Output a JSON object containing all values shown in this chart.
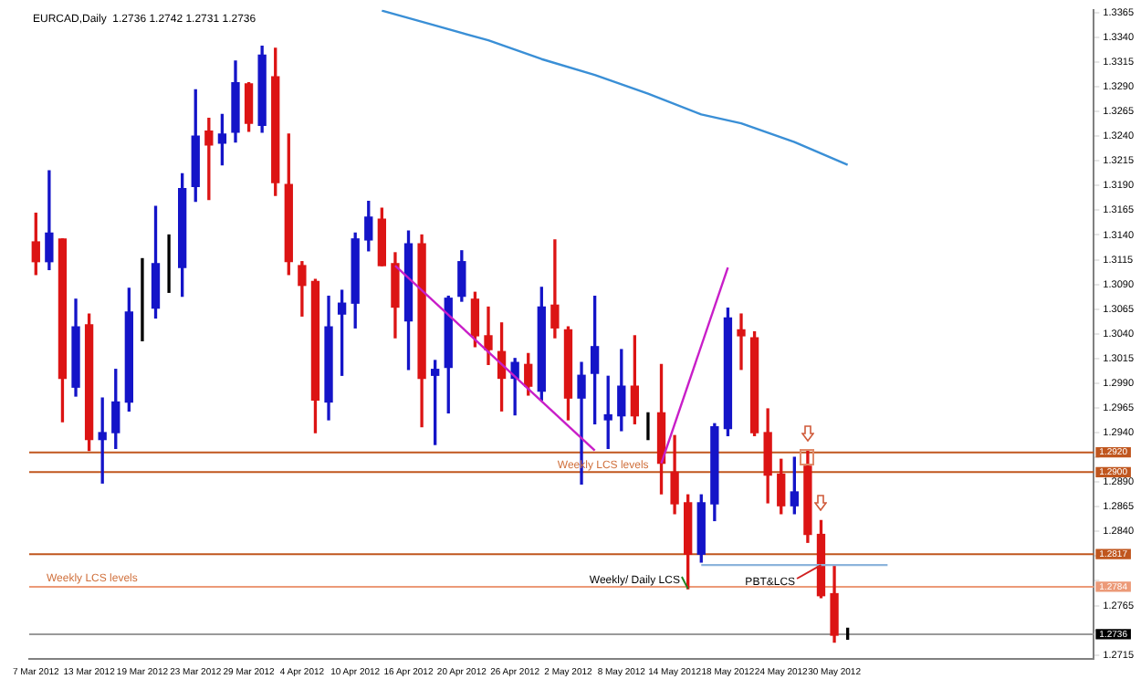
{
  "chart_data": {
    "type": "candlestick",
    "title": "EURCAD,Daily  1.2736 1.2742 1.2731 1.2736",
    "categories": [
      "7 Mar 2012",
      null,
      null,
      null,
      "13 Mar 2012",
      null,
      null,
      null,
      "19 Mar 2012",
      null,
      null,
      null,
      "23 Mar 2012",
      null,
      null,
      null,
      "29 Mar 2012",
      null,
      null,
      null,
      "4 Apr 2012",
      null,
      null,
      null,
      "10 Apr 2012",
      null,
      null,
      null,
      "16 Apr 2012",
      null,
      null,
      null,
      "20 Apr 2012",
      null,
      null,
      null,
      "26 Apr 2012",
      null,
      null,
      null,
      "2 May 2012",
      null,
      null,
      null,
      "8 May 2012",
      null,
      null,
      null,
      "14 May 2012",
      null,
      null,
      null,
      "18 May 2012",
      null,
      null,
      null,
      "24 May 2012",
      null,
      null,
      null,
      "30 May 2012",
      null,
      null,
      null,
      null,
      null,
      null,
      null,
      null,
      null,
      null,
      null,
      null,
      null,
      null,
      null,
      null,
      null,
      null,
      null
    ],
    "ohlc": [
      [
        1.3133,
        1.3162,
        1.31,
        1.3113
      ],
      [
        1.3113,
        1.3205,
        1.3105,
        1.3142
      ],
      [
        1.3136,
        1.3136,
        1.2951,
        1.2995
      ],
      [
        1.2986,
        1.3075,
        1.2977,
        1.3047
      ],
      [
        1.3049,
        1.306,
        1.2922,
        1.2933
      ],
      [
        1.2933,
        1.2975,
        1.2889,
        1.294
      ],
      [
        1.294,
        1.3004,
        1.2924,
        1.2971
      ],
      [
        1.2971,
        1.3086,
        1.2962,
        1.3062
      ],
      [
        1.3063,
        1.3116,
        1.3033,
        1.3063
      ],
      [
        1.3066,
        1.3169,
        1.3056,
        1.3111
      ],
      [
        1.311,
        1.314,
        1.3082,
        1.311
      ],
      [
        1.3107,
        1.3202,
        1.3078,
        1.3187
      ],
      [
        1.3189,
        1.3287,
        1.3174,
        1.324
      ],
      [
        1.3245,
        1.3258,
        1.3176,
        1.3231
      ],
      [
        1.3233,
        1.3262,
        1.3211,
        1.3242
      ],
      [
        1.3244,
        1.3316,
        1.3234,
        1.3294
      ],
      [
        1.3293,
        1.3294,
        1.3245,
        1.3253
      ],
      [
        1.3251,
        1.3331,
        1.3244,
        1.3322
      ],
      [
        1.33,
        1.3329,
        1.318,
        1.3193
      ],
      [
        1.3191,
        1.3242,
        1.31,
        1.3113
      ],
      [
        1.3109,
        1.3113,
        1.3058,
        1.3089
      ],
      [
        1.3093,
        1.3095,
        1.294,
        1.2973
      ],
      [
        1.2971,
        1.3078,
        1.2953,
        1.3047
      ],
      [
        1.306,
        1.3084,
        1.2998,
        1.3071
      ],
      [
        1.3071,
        1.3142,
        1.3046,
        1.3136
      ],
      [
        1.3135,
        1.3174,
        1.3124,
        1.3158
      ],
      [
        1.3156,
        1.3167,
        1.3109,
        1.3109
      ],
      [
        1.3111,
        1.3122,
        1.3036,
        1.3067
      ],
      [
        1.3053,
        1.3144,
        1.3004,
        1.3131
      ],
      [
        1.3131,
        1.314,
        1.2946,
        1.2995
      ],
      [
        1.2998,
        1.3013,
        1.2928,
        1.3004
      ],
      [
        1.3006,
        1.3078,
        1.296,
        1.3076
      ],
      [
        1.3078,
        1.3124,
        1.3073,
        1.3113
      ],
      [
        1.3075,
        1.3082,
        1.3027,
        1.3038
      ],
      [
        1.3038,
        1.3067,
        1.3009,
        1.3024
      ],
      [
        1.3022,
        1.3051,
        1.2962,
        1.2995
      ],
      [
        1.2995,
        1.3015,
        1.2958,
        1.3011
      ],
      [
        1.3009,
        1.302,
        1.2978,
        1.2987
      ],
      [
        1.2982,
        1.3087,
        1.2973,
        1.3067
      ],
      [
        1.3069,
        1.3135,
        1.3036,
        1.3046
      ],
      [
        1.3044,
        1.3047,
        1.2953,
        1.2975
      ],
      [
        1.2975,
        1.3011,
        1.2888,
        1.2998
      ],
      [
        1.3,
        1.3078,
        1.2949,
        1.3027
      ],
      [
        1.2953,
        1.2997,
        1.2924,
        1.2958
      ],
      [
        1.2957,
        1.3024,
        1.2942,
        1.2987
      ],
      [
        1.2987,
        1.3038,
        1.2949,
        1.2957
      ],
      [
        1.296,
        1.296,
        1.2933,
        1.296
      ],
      [
        1.296,
        1.3009,
        1.2878,
        1.2909
      ],
      [
        1.29,
        1.2937,
        1.2858,
        1.2868
      ],
      [
        1.2869,
        1.2877,
        1.2782,
        1.2817
      ],
      [
        1.2817,
        1.2877,
        1.2809,
        1.2869
      ],
      [
        1.2868,
        1.2949,
        1.2851,
        1.2946
      ],
      [
        1.2944,
        1.3066,
        1.2937,
        1.3056
      ],
      [
        1.3044,
        1.306,
        1.3004,
        1.3038
      ],
      [
        1.3036,
        1.3042,
        1.2937,
        1.294
      ],
      [
        1.294,
        1.2964,
        1.2869,
        1.2897
      ],
      [
        1.2898,
        1.2913,
        1.2858,
        1.2866
      ],
      [
        1.2866,
        1.2915,
        1.2858,
        1.288
      ],
      [
        1.2906,
        1.2922,
        1.2829,
        1.2837
      ],
      [
        1.2837,
        1.2851,
        1.2773,
        1.2775
      ],
      [
        1.2777,
        1.2806,
        1.2728,
        1.2735
      ],
      [
        1.2736,
        1.2742,
        1.2731,
        1.2736
      ],
      null,
      null,
      null,
      null,
      null,
      null,
      null,
      null,
      null,
      null,
      null,
      null,
      null,
      null,
      null,
      null,
      null,
      null
    ],
    "colors": [
      "#dc1414",
      "#1414c8",
      "#dc1414",
      "#1414c8",
      "#dc1414",
      "#1414c8",
      "#1414c8",
      "#1414c8",
      "#000000",
      "#1414c8",
      "#000000",
      "#1414c8",
      "#1414c8",
      "#dc1414",
      "#1414c8",
      "#1414c8",
      "#dc1414",
      "#1414c8",
      "#dc1414",
      "#dc1414",
      "#dc1414",
      "#dc1414",
      "#1414c8",
      "#1414c8",
      "#1414c8",
      "#1414c8",
      "#dc1414",
      "#dc1414",
      "#1414c8",
      "#dc1414",
      "#1414c8",
      "#1414c8",
      "#1414c8",
      "#dc1414",
      "#dc1414",
      "#dc1414",
      "#1414c8",
      "#dc1414",
      "#1414c8",
      "#dc1414",
      "#dc1414",
      "#1414c8",
      "#1414c8",
      "#1414c8",
      "#1414c8",
      "#dc1414",
      "#000000",
      "#dc1414",
      "#dc1414",
      "#dc1414",
      "#1414c8",
      "#1414c8",
      "#1414c8",
      "#dc1414",
      "#dc1414",
      "#dc1414",
      "#dc1414",
      "#1414c8",
      "#dc1414",
      "#dc1414",
      "#dc1414",
      "#000000",
      null,
      null,
      null,
      null,
      null,
      null,
      null,
      null,
      null,
      null,
      null,
      null,
      null,
      null,
      null,
      null,
      null,
      null
    ],
    "series": [
      {
        "type": "line",
        "color": "#3a8fd6",
        "values": [
          null,
          null,
          null,
          null,
          null,
          null,
          null,
          null,
          null,
          null,
          null,
          null,
          null,
          null,
          null,
          null,
          null,
          null,
          null,
          null,
          null,
          null,
          null,
          null,
          null,
          null,
          1.3367,
          null,
          null,
          null,
          1.3352,
          null,
          null,
          null,
          1.3337,
          null,
          null,
          null,
          1.3318,
          null,
          null,
          null,
          1.3302,
          null,
          null,
          null,
          1.3283,
          null,
          null,
          null,
          1.3262,
          null,
          null,
          1.3253,
          null,
          null,
          null,
          1.3234,
          null,
          null,
          null,
          1.3211,
          null,
          null,
          null,
          null,
          null,
          null,
          null,
          null,
          null,
          null,
          null,
          null,
          null,
          null,
          null,
          null,
          null,
          null
        ]
      },
      {
        "type": "line",
        "color": "#c81ec8",
        "values": [
          null,
          null,
          null,
          null,
          null,
          null,
          null,
          null,
          null,
          null,
          null,
          null,
          null,
          null,
          null,
          null,
          null,
          null,
          null,
          null,
          null,
          null,
          null,
          null,
          null,
          null,
          null,
          1.3109,
          null,
          null,
          null,
          null,
          null,
          null,
          null,
          null,
          null,
          null,
          null,
          null,
          null,
          null,
          1.2922,
          null,
          null,
          null,
          null,
          null,
          null,
          null,
          null,
          null,
          null,
          null,
          null,
          null,
          null,
          null,
          null,
          null,
          null,
          null,
          null,
          null,
          null,
          null,
          null,
          null,
          null,
          null,
          null,
          null,
          null,
          null,
          null,
          null,
          null,
          null,
          null,
          null
        ]
      },
      {
        "type": "line",
        "color": "#c81ec8",
        "values": [
          null,
          null,
          null,
          null,
          null,
          null,
          null,
          null,
          null,
          null,
          null,
          null,
          null,
          null,
          null,
          null,
          null,
          null,
          null,
          null,
          null,
          null,
          null,
          null,
          null,
          null,
          null,
          null,
          null,
          null,
          null,
          null,
          null,
          null,
          null,
          null,
          null,
          null,
          null,
          null,
          null,
          null,
          null,
          null,
          null,
          null,
          null,
          1.2909,
          null,
          null,
          null,
          null,
          1.3107,
          null,
          null,
          null,
          null,
          null,
          null,
          null,
          null,
          null,
          null,
          null,
          null,
          null,
          null,
          null,
          null,
          null,
          null,
          null,
          null,
          null,
          null,
          null,
          null,
          null,
          null,
          null
        ]
      },
      {
        "type": "line",
        "color": "#8cb4dc",
        "values": [
          null,
          null,
          null,
          null,
          null,
          null,
          null,
          null,
          null,
          null,
          null,
          null,
          null,
          null,
          null,
          null,
          null,
          null,
          null,
          null,
          null,
          null,
          null,
          null,
          null,
          null,
          null,
          null,
          null,
          null,
          null,
          null,
          null,
          null,
          null,
          null,
          null,
          null,
          null,
          null,
          null,
          null,
          null,
          null,
          null,
          null,
          null,
          null,
          null,
          null,
          1.2806,
          null,
          null,
          null,
          null,
          null,
          null,
          null,
          null,
          null,
          null,
          null,
          null,
          null,
          1.2806,
          null,
          null,
          null,
          null,
          null,
          null,
          null,
          null,
          null,
          null,
          null,
          null,
          null,
          null,
          null
        ]
      }
    ],
    "ylim": [
      1.2711,
      1.3368
    ],
    "yticks": [
      1.2715,
      {
        "value": 1.274,
        "label": null
      },
      1.2765,
      {
        "value": 1.279,
        "label": null
      },
      {
        "value": 1.2815,
        "label": null
      },
      {
        "value": 1.284,
        "label": "1.2840"
      },
      1.2865,
      {
        "value": 1.289,
        "label": "1.2890"
      },
      {
        "value": 1.2915,
        "label": null
      },
      {
        "value": 1.294,
        "label": "1.2940"
      },
      1.2965,
      {
        "value": 1.299,
        "label": "1.2990"
      },
      1.3015,
      {
        "value": 1.304,
        "label": "1.3040"
      },
      1.3065,
      {
        "value": 1.309,
        "label": "1.3090"
      },
      1.3115,
      {
        "value": 1.314,
        "label": "1.3140"
      },
      1.3165,
      {
        "value": 1.319,
        "label": "1.3190"
      },
      1.3215,
      {
        "value": 1.324,
        "label": "1.3240"
      },
      1.3265,
      {
        "value": 1.329,
        "label": "1.3290"
      },
      1.3315,
      {
        "value": 1.334,
        "label": "1.3340"
      },
      1.3365
    ],
    "ref_lines": [
      {
        "axis": "y",
        "value": 1.292,
        "label": "1.2920",
        "color": "#c0561e"
      },
      {
        "axis": "y",
        "value": 1.29,
        "label": "1.2900",
        "color": "#c0561e"
      },
      {
        "axis": "y",
        "value": 1.2817,
        "label": "1.2817",
        "color": "#c0561e"
      },
      {
        "axis": "y",
        "value": 1.2784,
        "label": "1.2784",
        "color": "#ec9a78"
      },
      {
        "axis": "y",
        "value": 1.2736,
        "label": "1.2736",
        "color": "#9a9a9a"
      }
    ],
    "annotations": [
      "Weekly LCS levels",
      "Weekly LCS levels",
      "Weekly/ Daily LCS",
      "PBT&LCS"
    ],
    "grid": false,
    "legend": false
  }
}
